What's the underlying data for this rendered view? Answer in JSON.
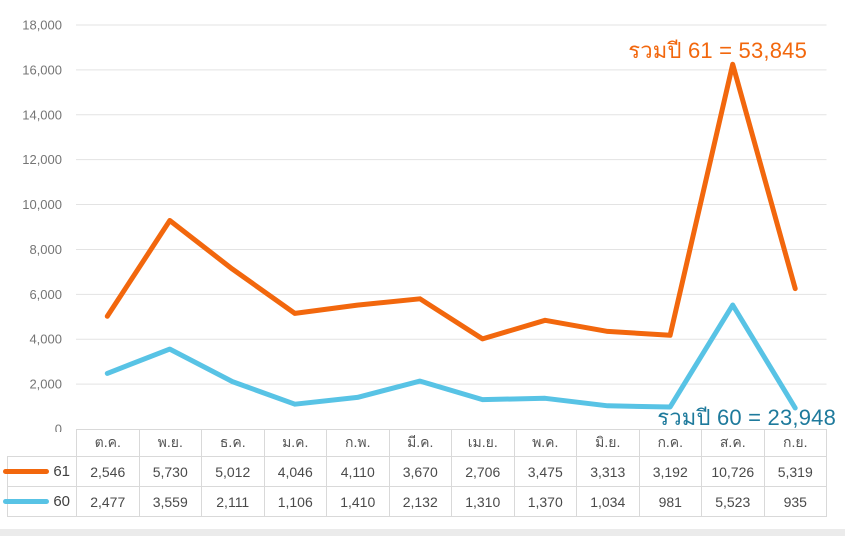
{
  "chart_data": {
    "type": "line",
    "stacked": true,
    "title": "",
    "xlabel": "",
    "ylabel": "",
    "categories": [
      "ต.ค.",
      "พ.ย.",
      "ธ.ค.",
      "ม.ค.",
      "ก.พ.",
      "มี.ค.",
      "เม.ย.",
      "พ.ค.",
      "มิ.ย.",
      "ก.ค.",
      "ส.ค.",
      "ก.ย."
    ],
    "series": [
      {
        "name": "61",
        "color": "#f2670d",
        "values": [
          2546,
          5730,
          5012,
          4046,
          4110,
          3670,
          2706,
          3475,
          3313,
          3192,
          10726,
          5319
        ],
        "total": 53845
      },
      {
        "name": "60",
        "color": "#58c3e5",
        "values": [
          2477,
          3559,
          2111,
          1106,
          1410,
          2132,
          1310,
          1370,
          1034,
          981,
          5523,
          935
        ],
        "total": 23948
      }
    ],
    "ylim": [
      0,
      18000
    ],
    "ytick_step": 2000,
    "grid": true,
    "legend_position": "table-left",
    "render_note": "series 61 line is drawn stacked on top of series 60"
  },
  "annotations": {
    "total_61": {
      "text": "รวมปี 61 = 53,845",
      "color": "#f2670d"
    },
    "total_60": {
      "text": "รวมปี 60 = 23,948",
      "color": "#1e7a9c"
    }
  },
  "table": {
    "headers": [
      "ต.ค.",
      "พ.ย.",
      "ธ.ค.",
      "ม.ค.",
      "ก.พ.",
      "มี.ค.",
      "เม.ย.",
      "พ.ค.",
      "มิ.ย.",
      "ก.ค.",
      "ส.ค.",
      "ก.ย."
    ],
    "rows": [
      {
        "legend": "61",
        "color": "#f2670d",
        "values": [
          "2,546",
          "5,730",
          "5,012",
          "4,046",
          "4,110",
          "3,670",
          "2,706",
          "3,475",
          "3,313",
          "3,192",
          "10,726",
          "5,319"
        ]
      },
      {
        "legend": "60",
        "color": "#58c3e5",
        "values": [
          "2,477",
          "3,559",
          "2,111",
          "1,106",
          "1,410",
          "2,132",
          "1,310",
          "1,370",
          "1,034",
          "981",
          "5,523",
          "935"
        ]
      }
    ]
  },
  "colors": {
    "grid": "#e3e3e3",
    "axis_label": "#757575",
    "table_border": "#d9d9d9",
    "bottom_strip": "#ebebeb"
  }
}
